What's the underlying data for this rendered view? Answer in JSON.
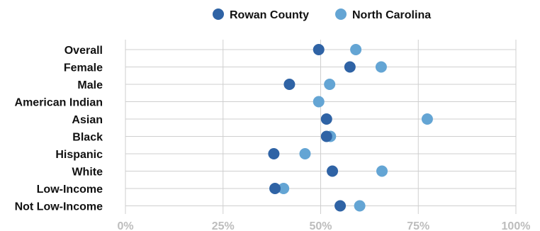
{
  "chart_data": {
    "type": "scatter",
    "categories": [
      "Overall",
      "Female",
      "Male",
      "American Indian",
      "Asian",
      "Black",
      "Hispanic",
      "White",
      "Low-Income",
      "Not Low-Income"
    ],
    "series": [
      {
        "name": "Rowan County",
        "color": "#2f63a5",
        "values": [
          49.5,
          57.5,
          42.0,
          null,
          51.5,
          51.5,
          38.0,
          53.0,
          38.3,
          55.0
        ]
      },
      {
        "name": "North Carolina",
        "color": "#64a5d4",
        "values": [
          59.0,
          65.5,
          52.3,
          49.5,
          77.3,
          52.5,
          46.0,
          65.7,
          40.5,
          60.0
        ]
      }
    ],
    "x_ticks": [
      "0%",
      "25%",
      "50%",
      "75%",
      "100%"
    ],
    "xlim": [
      0,
      100
    ],
    "legend_position": "top-center",
    "grid": true
  }
}
